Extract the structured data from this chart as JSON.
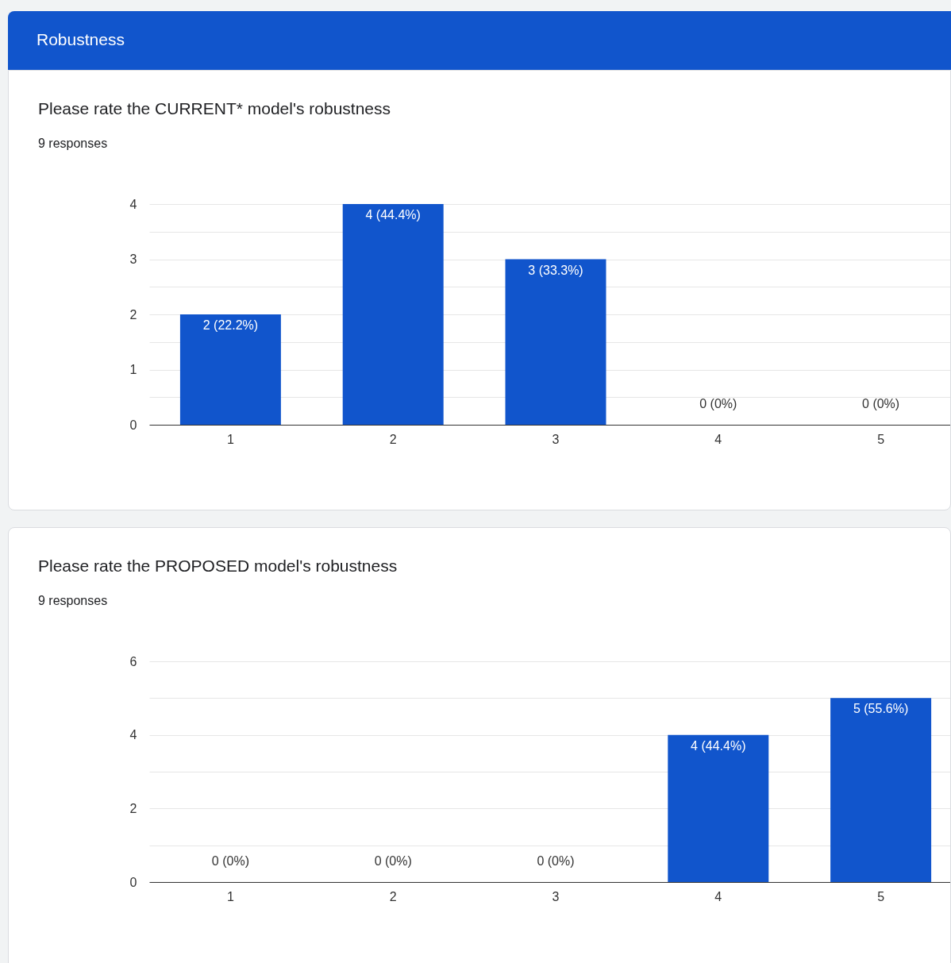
{
  "chart_data": [
    {
      "type": "other",
      "title": "Robustness"
    },
    {
      "type": "bar",
      "title": "Please rate the CURRENT* model's robustness",
      "subtitle": "9 responses",
      "categories": [
        "1",
        "2",
        "3",
        "4",
        "5"
      ],
      "values": [
        2,
        4,
        3,
        0,
        0
      ],
      "color": "#1155cc",
      "value_labels": [
        "2 (22.2%)",
        "4 (44.4%)",
        "3 (33.3%)",
        "0 (0%)",
        "0 (0%)"
      ],
      "ylim": [
        0,
        4
      ],
      "yticks": [
        0,
        {
          "value": 0.5,
          "label": null
        },
        1,
        {
          "value": 1.5,
          "label": null
        },
        2,
        {
          "value": 2.5,
          "label": null
        },
        3,
        {
          "value": 3.5,
          "label": null
        },
        4
      ],
      "grid": true
    },
    {
      "type": "bar",
      "title": "Please rate the PROPOSED model's robustness",
      "subtitle": "9 responses",
      "categories": [
        "1",
        "2",
        "3",
        "4",
        "5"
      ],
      "values": [
        0,
        0,
        0,
        4,
        5
      ],
      "color": "#1155cc",
      "value_labels": [
        "0 (0%)",
        "0 (0%)",
        "0 (0%)",
        "4 (44.4%)",
        "5 (55.6%)"
      ],
      "ylim": [
        0,
        6
      ],
      "yticks": [
        0,
        {
          "value": 1,
          "label": null
        },
        2,
        {
          "value": 3,
          "label": null
        },
        4,
        {
          "value": 5,
          "label": null
        },
        6
      ],
      "grid": true
    }
  ]
}
